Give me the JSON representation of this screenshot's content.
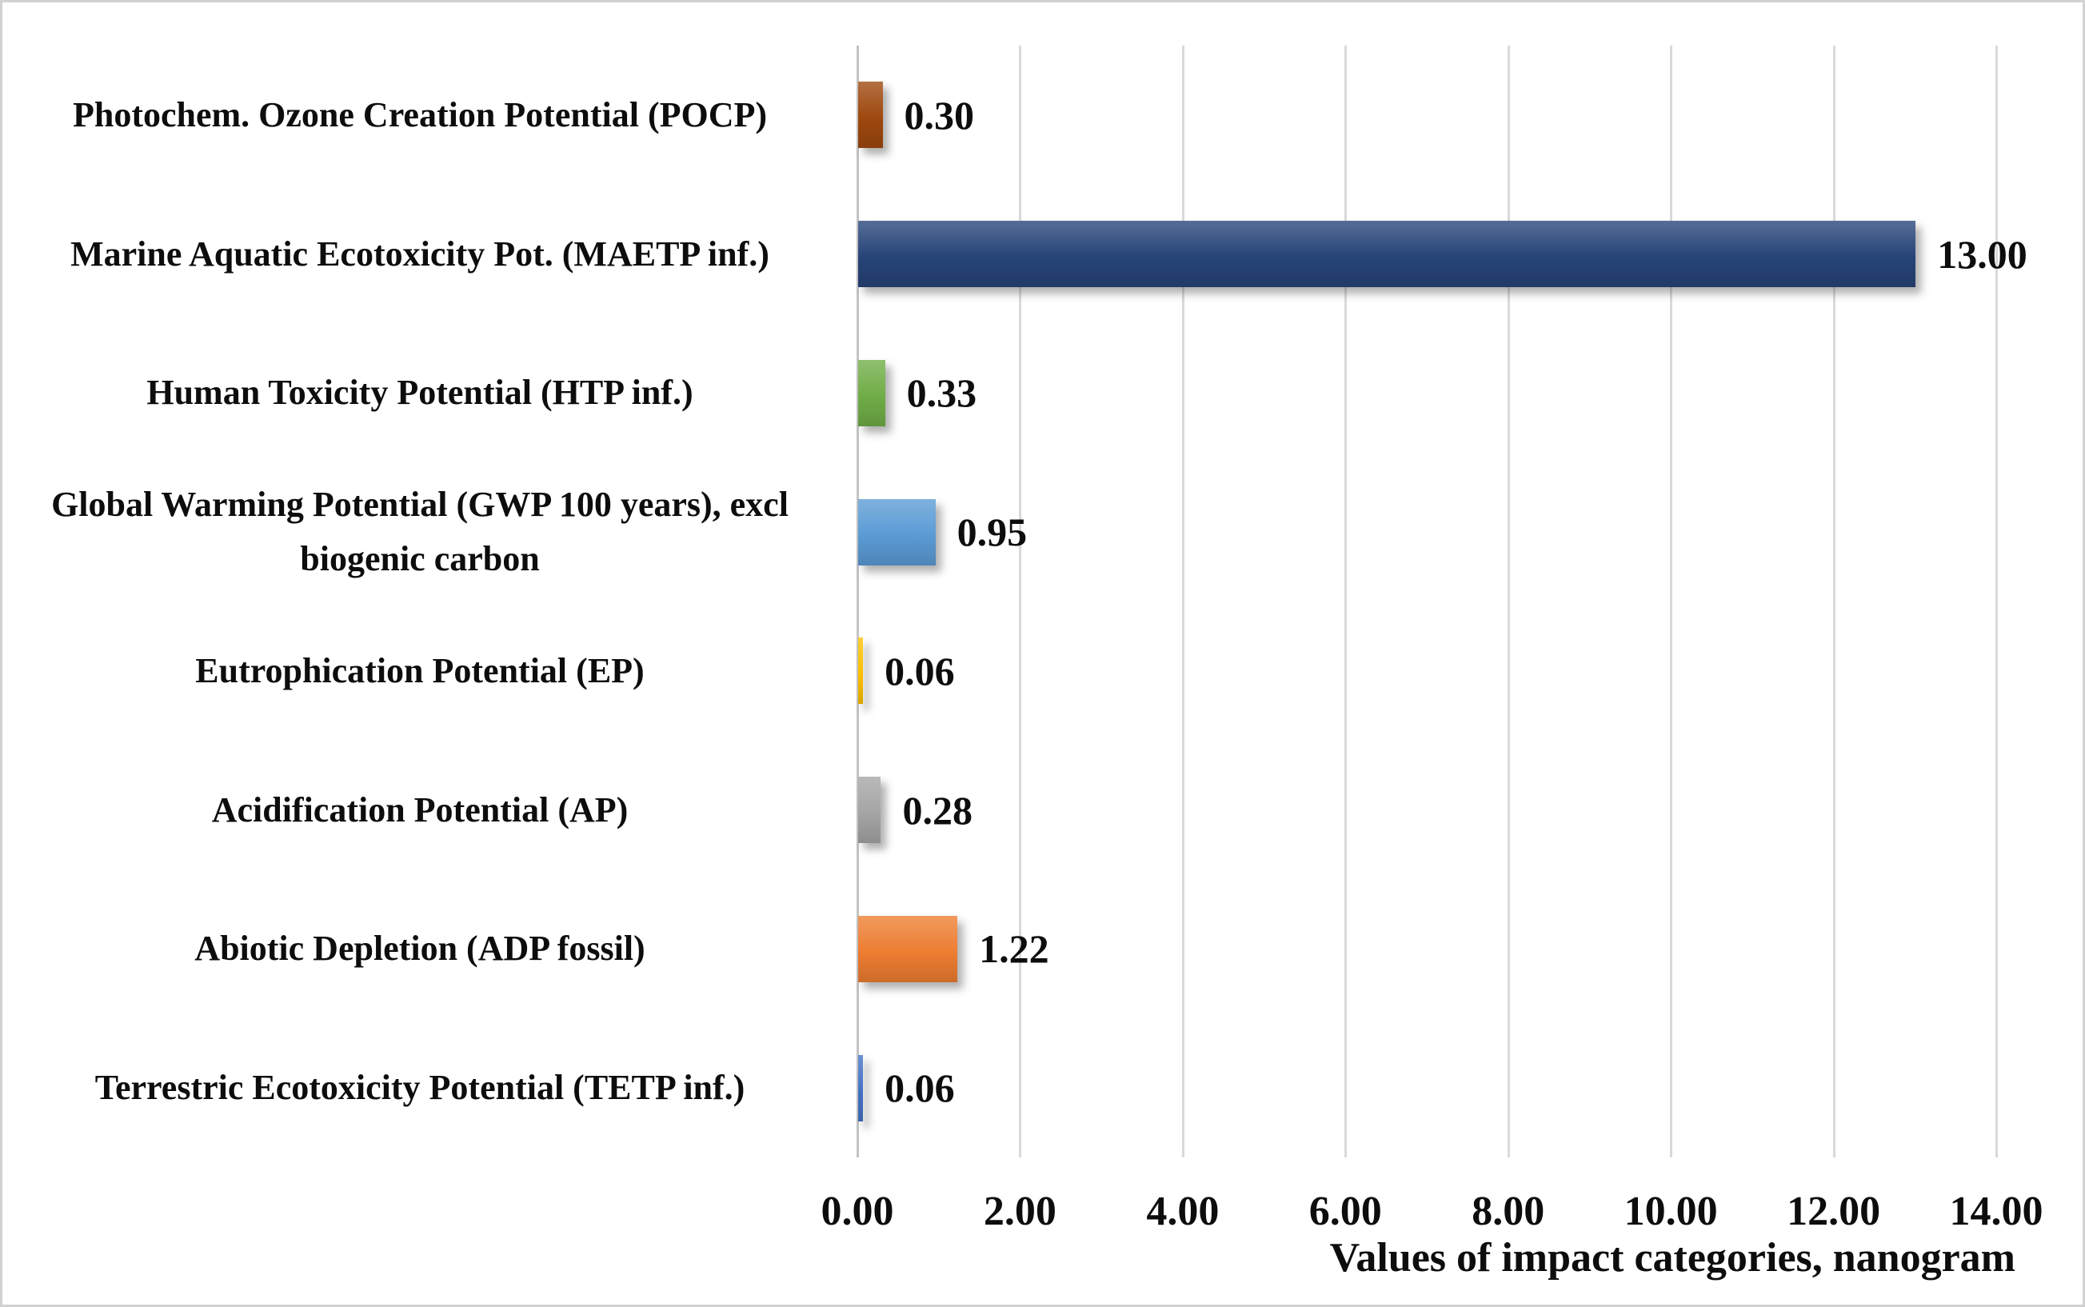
{
  "chart_data": {
    "type": "bar",
    "orientation": "horizontal",
    "title": "",
    "xlabel": "Values of impact categories, nanogram",
    "ylabel": "",
    "categories": [
      "Photochem. Ozone Creation Potential (POCP)",
      "Marine Aquatic Ecotoxicity Pot. (MAETP inf.)",
      "Human Toxicity Potential (HTP inf.)",
      "Global Warming Potential (GWP 100 years), excl biogenic carbon",
      "Eutrophication Potential (EP)",
      "Acidification Potential (AP)",
      "Abiotic Depletion (ADP fossil)",
      "Terrestric Ecotoxicity Potential (TETP inf.)"
    ],
    "values": [
      0.3,
      13.0,
      0.33,
      0.95,
      0.06,
      0.28,
      1.22,
      0.06
    ],
    "value_labels": [
      "0.30",
      "13.00",
      "0.33",
      "0.95",
      "0.06",
      "0.28",
      "1.22",
      "0.06"
    ],
    "bar_colors": [
      "#9E480E",
      "#264478",
      "#70AD47",
      "#5B9BD5",
      "#FFC000",
      "#A5A5A5",
      "#ED7D31",
      "#4472C4"
    ],
    "x_ticks": [
      "0.00",
      "2.00",
      "4.00",
      "6.00",
      "8.00",
      "10.00",
      "12.00",
      "14.00"
    ],
    "x_tick_values": [
      0,
      2,
      4,
      6,
      8,
      10,
      12,
      14
    ],
    "xlim": [
      0,
      14
    ],
    "grid": true,
    "gridline_color": "#D9D9D9",
    "axis_line_color": "#C3C3C3",
    "background_color": "#FFFFFF",
    "border_color": "#D2D2D2",
    "text_color": "#0D0D0D"
  }
}
